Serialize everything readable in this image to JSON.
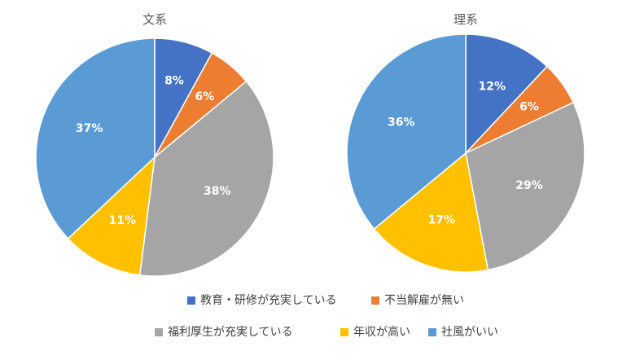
{
  "chart_data": [
    {
      "type": "pie",
      "title": "文系",
      "categories": [
        "教育・研修が充実している",
        "不当解雇が無い",
        "福利厚生が充実している",
        "年収が高い",
        "社風がいい"
      ],
      "values": [
        8,
        6,
        38,
        11,
        37
      ],
      "labels": [
        "8%",
        "6%",
        "38%",
        "11%",
        "37%"
      ]
    },
    {
      "type": "pie",
      "title": "理系",
      "categories": [
        "教育・研修が充実している",
        "不当解雇が無い",
        "福利厚生が充実している",
        "年収が高い",
        "社風がいい"
      ],
      "values": [
        12,
        6,
        29,
        17,
        36
      ],
      "labels": [
        "12%",
        "6%",
        "29%",
        "17%",
        "36%"
      ]
    }
  ],
  "legend": {
    "placement": "bottom",
    "items": [
      {
        "label": "教育・研修が充実している",
        "color": "#4472C4"
      },
      {
        "label": "不当解雇が無い",
        "color": "#ED7D31"
      },
      {
        "label": "福利厚生が充実している",
        "color": "#A5A5A5"
      },
      {
        "label": "年収が高い",
        "color": "#FFC000"
      },
      {
        "label": "社風がいい",
        "color": "#5B9BD5"
      }
    ]
  }
}
